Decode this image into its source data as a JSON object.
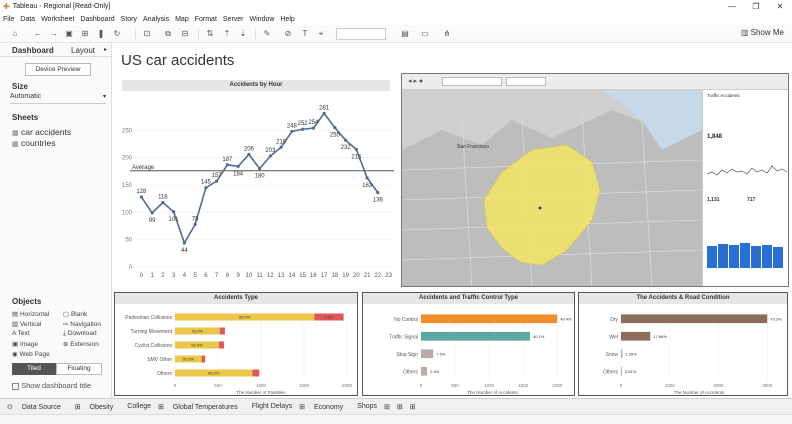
{
  "window": {
    "title": "Tableau - Regional [Read-Only]"
  },
  "menu": [
    "File",
    "Data",
    "Worksheet",
    "Dashboard",
    "Story",
    "Analysis",
    "Map",
    "Format",
    "Server",
    "Window",
    "Help"
  ],
  "toolbar": {
    "show_me": "Show Me"
  },
  "left_pane": {
    "tab_dashboard": "Dashboard",
    "tab_layout": "Layout",
    "device_preview": "Device Preview",
    "size_heading": "Size",
    "size_value": "Automatic",
    "sheets_heading": "Sheets",
    "sheets": [
      "car accidents",
      "countries"
    ],
    "objects_heading": "Objects",
    "objects": [
      "Horizontal",
      "Blank",
      "Vertical",
      "Navigation",
      "Text",
      "Download",
      "Image",
      "Extension",
      "Web Page"
    ],
    "tiled": "Tiled",
    "floating": "Floating",
    "show_title": "Show dashboard title"
  },
  "dashboard": {
    "title": "US car accidents"
  },
  "colors": {
    "line": "#4e6d91",
    "orange": "#f28e2b",
    "teal": "#5aa8a0",
    "brown": "#8c6d5c",
    "yellow": "#eac649",
    "red": "#e15759",
    "grey": "#b9aba8"
  },
  "chart_data": [
    {
      "type": "line",
      "title": "Accidents by Hour",
      "x": [
        0,
        1,
        2,
        3,
        4,
        5,
        6,
        7,
        8,
        9,
        10,
        11,
        12,
        13,
        14,
        15,
        16,
        17,
        18,
        19,
        20,
        21,
        22,
        23
      ],
      "values": [
        128,
        99,
        118,
        101,
        44,
        78,
        145,
        157,
        187,
        184,
        206,
        180,
        203,
        219,
        248,
        252,
        254,
        281,
        255,
        232,
        215,
        163,
        136,
        null
      ],
      "point_labels": [
        "128",
        "99",
        "118",
        "101",
        "44",
        "78",
        "145",
        "157",
        "187",
        "184",
        "206",
        "180",
        "203",
        "219",
        "248",
        "252",
        "254",
        "281",
        "255",
        "232",
        "215",
        "163",
        "136",
        ""
      ],
      "x_tick_labels": [
        "0",
        "1",
        "2",
        "3",
        "4",
        "5",
        "6",
        "7",
        "8",
        "9",
        "10",
        "11",
        "12",
        "13",
        "14",
        "15",
        "16",
        "17",
        "18",
        "19",
        "20",
        "21",
        "22",
        "23"
      ],
      "y_ticks": [
        0,
        50,
        100,
        150,
        200,
        250
      ],
      "y_tick_labels": [
        "0",
        "50",
        "100",
        "150",
        "200",
        "250"
      ],
      "ylim": [
        0,
        300
      ],
      "reference_line": {
        "label": "Average",
        "value": 176
      }
    },
    {
      "type": "bar",
      "title": "Accidents Type",
      "xlabel": "The Number of Fatalities",
      "categories": [
        "Pedestrian Collisions",
        "Turning Movement",
        "Cyclist Collisions",
        "SMV Other",
        "Others"
      ],
      "series": [
        {
          "values": [
            1620,
            520,
            510,
            310,
            900
          ],
          "labels": [
            "90.0%",
            "93.0%",
            "93.0%",
            "91.0%",
            "95.0%"
          ]
        },
        {
          "values": [
            340,
            60,
            60,
            40,
            80
          ],
          "labels": [
            "7.0%",
            "",
            "",
            "",
            ""
          ]
        }
      ],
      "x_ticks": [
        0,
        500,
        1000,
        1500,
        2000
      ],
      "x_tick_labels": [
        "0",
        "500",
        "1000",
        "1500",
        "2000"
      ],
      "xlim": [
        0,
        2000
      ]
    },
    {
      "type": "bar",
      "title": "Accidents and Traffic Control Type",
      "xlabel": "The Number of Accidents",
      "categories": [
        "No Control",
        "Traffic Signal",
        "Stop Sign",
        "Others"
      ],
      "values": [
        2000,
        1600,
        180,
        90
      ],
      "labels": [
        "49.4%",
        "40.1%",
        "7.6%",
        "2.4%"
      ],
      "x_ticks": [
        0,
        500,
        1000,
        1500,
        2000
      ],
      "x_tick_labels": [
        "0",
        "500",
        "1000",
        "1500",
        "2000"
      ],
      "xlim": [
        0,
        2100
      ]
    },
    {
      "type": "bar",
      "title": "The Accidents & Road Condition",
      "xlabel": "The Number of Accidents",
      "categories": [
        "Dry",
        "Wet",
        "Snow",
        "Others"
      ],
      "values": [
        3000,
        600,
        30,
        20
      ],
      "labels": [
        "79.3%",
        "17.66%",
        "1.35%",
        "0.51%"
      ],
      "x_ticks": [
        0,
        1000,
        2000,
        3000
      ],
      "x_tick_labels": [
        "0",
        "1000",
        "2000",
        "3000"
      ],
      "xlim": [
        0,
        3200
      ]
    }
  ],
  "map": {
    "city_label": "San Francisco",
    "side_title": "Traffic Accidents",
    "side_value": "1,848",
    "side_value2": "1,131",
    "side_value3": "717"
  },
  "status": {
    "tabs": [
      "Data Source",
      "Obesity",
      "College",
      "Global Temperatures",
      "Flight Delays",
      "Economy",
      "Shops"
    ]
  }
}
